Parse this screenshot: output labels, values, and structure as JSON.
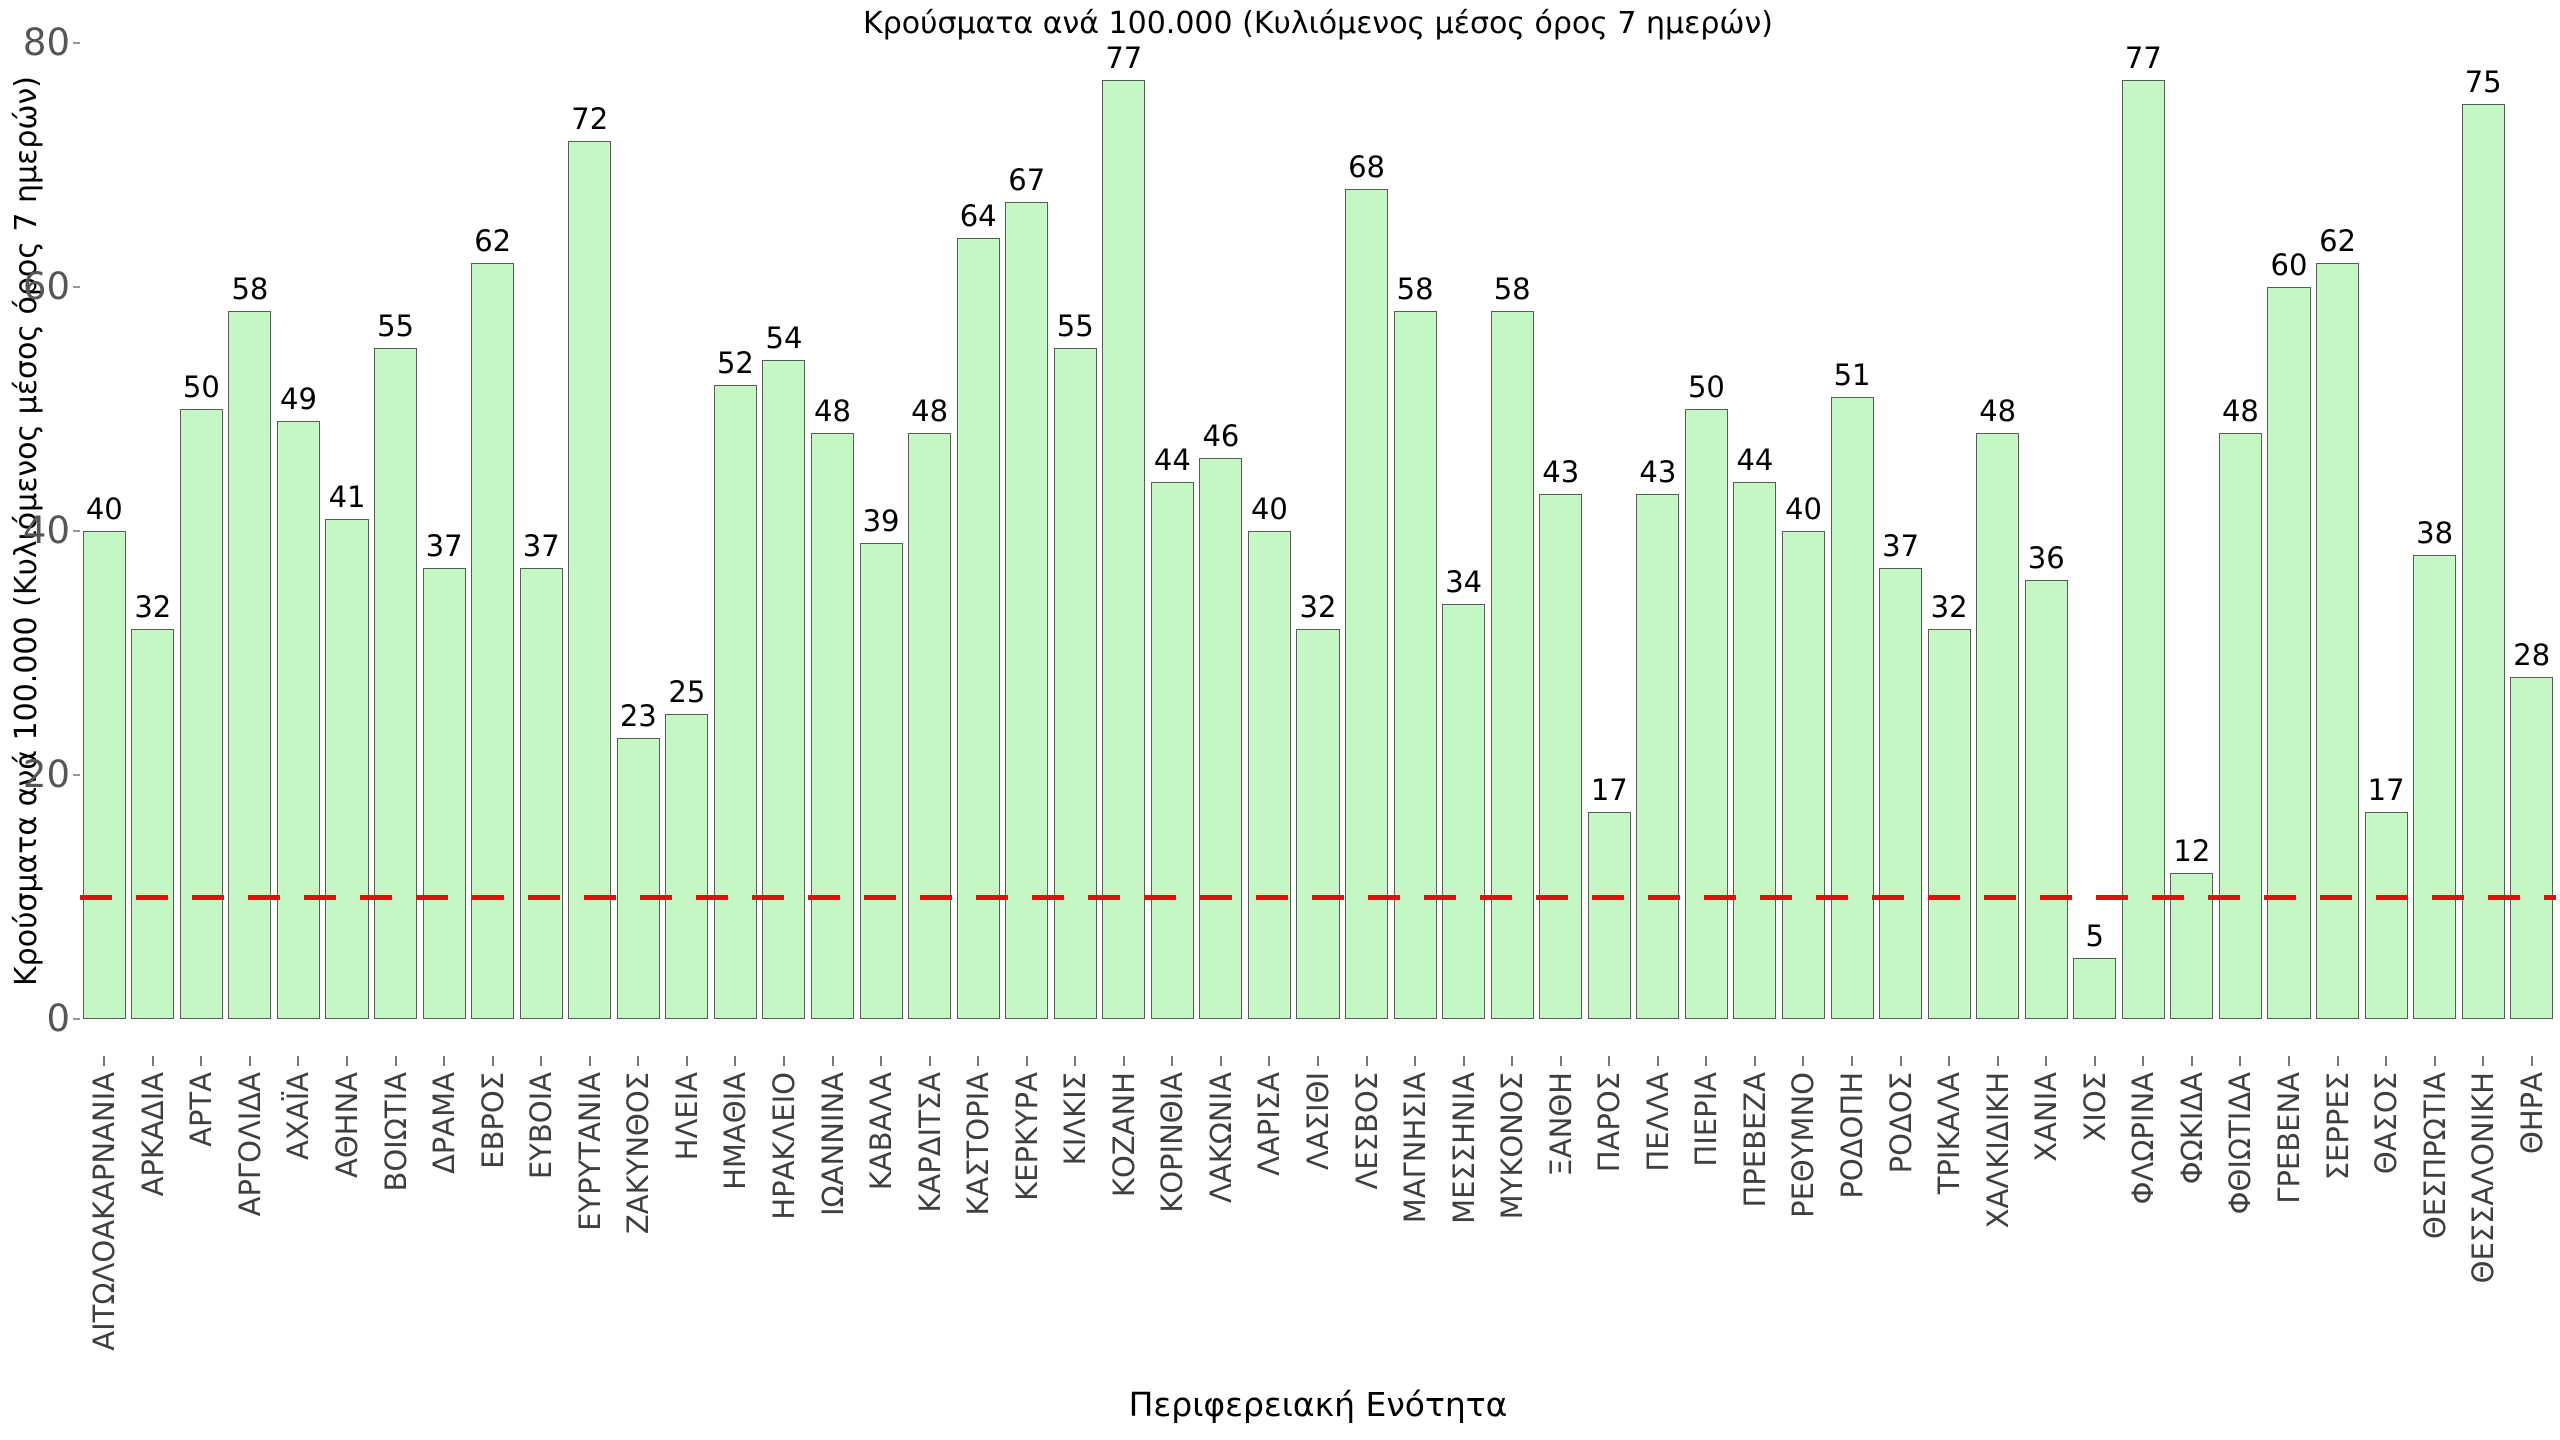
{
  "colors": {
    "bar_fill": "#c4f7c4",
    "bar_edge": "#565f56",
    "threshold": "#dd1111",
    "y_tick_label": "#555555",
    "x_tick_label": "#3f3f3f",
    "text": "#000000"
  },
  "chart_data": {
    "type": "bar",
    "title": "Κρούσματα ανά 100.000 (Κυλιόμενος μέσος όρος 7 ημερών)",
    "xlabel": "Περιφερειακή Ενότητα",
    "ylabel": "Κρούσματα ανά 100.000 (Κυλιόμενος μέσος όρος 7 ημερών)",
    "ylim": [
      0,
      80
    ],
    "yticks": [
      0,
      20,
      40,
      60,
      80
    ],
    "grid": false,
    "legend_position": "none",
    "bar_label_position": "top",
    "threshold_line": {
      "value": 10,
      "color": "#dd1111",
      "style": "dashed"
    },
    "categories": [
      "ΑΙΤΩΛΟΑΚΑΡΝΑΝΙΑ",
      "ΑΡΚΑΔΙΑ",
      "ΑΡΤΑ",
      "ΑΡΓΟΛΙΔΑ",
      "ΑΧΑΪΑ",
      "ΑΘΗΝΑ",
      "ΒΟΙΩΤΙΑ",
      "ΔΡΑΜΑ",
      "ΕΒΡΟΣ",
      "ΕΥΒΟΙΑ",
      "ΕΥΡΥΤΑΝΙΑ",
      "ΖΑΚΥΝΘΟΣ",
      "ΗΛΕΙΑ",
      "ΗΜΑΘΙΑ",
      "ΗΡΑΚΛΕΙΟ",
      "ΙΩΑΝΝΙΝΑ",
      "ΚΑΒΑΛΑ",
      "ΚΑΡΔΙΤΣΑ",
      "ΚΑΣΤΟΡΙΑ",
      "ΚΕΡΚΥΡΑ",
      "ΚΙΛΚΙΣ",
      "ΚΟΖΑΝΗ",
      "ΚΟΡΙΝΘΙΑ",
      "ΛΑΚΩΝΙΑ",
      "ΛΑΡΙΣΑ",
      "ΛΑΣΙΘΙ",
      "ΛΕΣΒΟΣ",
      "ΜΑΓΝΗΣΙΑ",
      "ΜΕΣΣΗΝΙΑ",
      "ΜΥΚΟΝΟΣ",
      "ΞΑΝΘΗ",
      "ΠΑΡΟΣ",
      "ΠΕΛΛΑ",
      "ΠΙΕΡΙΑ",
      "ΠΡΕΒΕΖΑ",
      "ΡΕΘΥΜΝΟ",
      "ΡΟΔΟΠΗ",
      "ΡΟΔΟΣ",
      "ΤΡΙΚΑΛΑ",
      "ΧΑΛΚΙΔΙΚΗ",
      "ΧΑΝΙΑ",
      "ΧΙΟΣ",
      "ΦΛΩΡΙΝΑ",
      "ΦΩΚΙΔΑ",
      "ΦΘΙΩΤΙΔΑ",
      "ΓΡΕΒΕΝΑ",
      "ΣΕΡΡΕΣ",
      "ΘΑΣΟΣ",
      "ΘΕΣΠΡΩΤΙΑ",
      "ΘΕΣΣΑΛΟΝΙΚΗ",
      "ΘΗΡΑ"
    ],
    "values": [
      40,
      32,
      50,
      58,
      49,
      41,
      55,
      37,
      62,
      37,
      72,
      23,
      25,
      52,
      54,
      48,
      39,
      48,
      64,
      67,
      55,
      77,
      44,
      46,
      40,
      32,
      68,
      58,
      34,
      58,
      43,
      17,
      43,
      50,
      44,
      40,
      51,
      37,
      32,
      48,
      36,
      5,
      77,
      12,
      48,
      60,
      62,
      17,
      38,
      75,
      28
    ]
  }
}
